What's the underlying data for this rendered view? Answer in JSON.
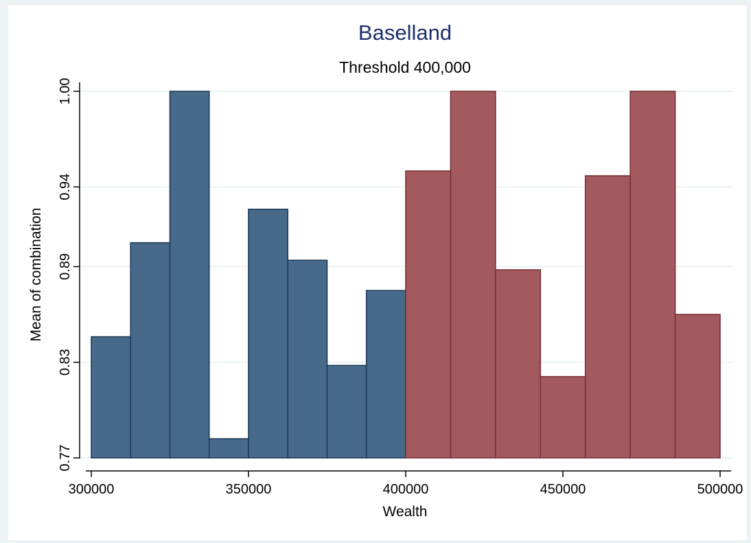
{
  "chart_data": {
    "type": "bar",
    "title": "Baselland",
    "subtitle": "Threshold 400,000",
    "xlabel": "Wealth",
    "ylabel": "Mean of combination",
    "xlim": [
      300000,
      500000
    ],
    "ylim": [
      0.77,
      1.0
    ],
    "x_ticks": [
      300000,
      350000,
      400000,
      450000,
      500000
    ],
    "x_tick_labels": [
      "300000",
      "350000",
      "400000",
      "450000",
      "500000"
    ],
    "y_ticks": [
      0.77,
      0.83,
      0.89,
      0.94,
      1.0
    ],
    "y_tick_labels": [
      "0.77",
      "0.83",
      "0.89",
      "0.94",
      "1.00"
    ],
    "grid": true,
    "threshold": 400000,
    "colors": {
      "below": "#476a8b",
      "above": "#a35a5e",
      "below_edge": "#1e3a58",
      "above_edge": "#7a2f38",
      "grid": "#eaf2f3",
      "title": "#1a2f6e"
    },
    "series": [
      {
        "group": "below",
        "bins": [
          {
            "x0": 300000,
            "x1": 312500,
            "value": 0.846
          },
          {
            "x0": 312500,
            "x1": 325000,
            "value": 0.905
          },
          {
            "x0": 325000,
            "x1": 337500,
            "value": 1.0
          },
          {
            "x0": 337500,
            "x1": 350000,
            "value": 0.782
          },
          {
            "x0": 350000,
            "x1": 362500,
            "value": 0.926
          },
          {
            "x0": 362500,
            "x1": 375000,
            "value": 0.894
          },
          {
            "x0": 375000,
            "x1": 387500,
            "value": 0.828
          },
          {
            "x0": 387500,
            "x1": 400000,
            "value": 0.875
          }
        ]
      },
      {
        "group": "above",
        "bins": [
          {
            "x0": 400000,
            "x1": 414286,
            "value": 0.95
          },
          {
            "x0": 414286,
            "x1": 428571,
            "value": 1.0
          },
          {
            "x0": 428571,
            "x1": 442857,
            "value": 0.888
          },
          {
            "x0": 442857,
            "x1": 457143,
            "value": 0.821
          },
          {
            "x0": 457143,
            "x1": 471429,
            "value": 0.947
          },
          {
            "x0": 471429,
            "x1": 485714,
            "value": 1.0
          },
          {
            "x0": 485714,
            "x1": 500000,
            "value": 0.86
          }
        ]
      }
    ]
  }
}
